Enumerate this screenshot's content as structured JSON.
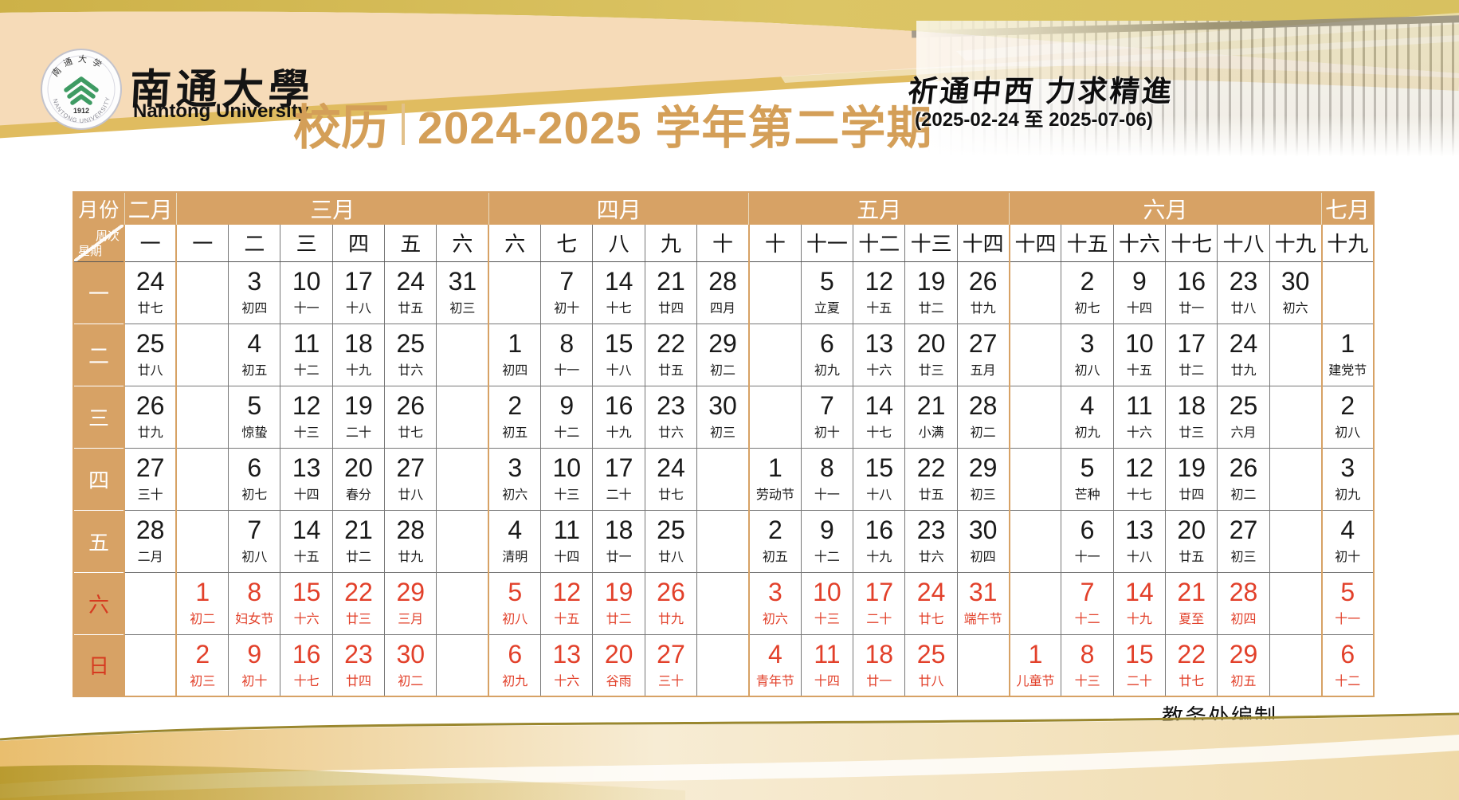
{
  "header": {
    "university_name_zh": "南通大學",
    "university_name_en": "Nantong University",
    "seal_year": "1912",
    "seal_text_zh": "南通大学",
    "seal_text_en": "NANTONG UNIVERSITY",
    "title_prefix": "校历",
    "title_main": "2024-2025 学年第二学期",
    "motto": "祈通中西  力求精進",
    "date_range": "(2025-02-24 至 2025-07-06)"
  },
  "footer": {
    "credit": "教务处编制"
  },
  "colors": {
    "tan_header": "#D7A265",
    "weekend_red": "#E2402A",
    "title_gold": "#D49F58",
    "seal_green": "#3E9B63",
    "top_band_gold": "#CDB148",
    "peach_band": "#F6DBB8",
    "ribbon_gold": "#E0BC60",
    "bottom_band_gold": "#E9BE6E",
    "bottom_olive": "#9A872E"
  },
  "calendar": {
    "corner": {
      "month_label": "月份",
      "week_label": "周次",
      "weekday_label": "星期"
    },
    "months": [
      {
        "label": "二月",
        "span": 1
      },
      {
        "label": "三月",
        "span": 6
      },
      {
        "label": "四月",
        "span": 5
      },
      {
        "label": "五月",
        "span": 5
      },
      {
        "label": "六月",
        "span": 6
      },
      {
        "label": "七月",
        "span": 1
      }
    ],
    "weeks": [
      "一",
      "一",
      "二",
      "三",
      "四",
      "五",
      "六",
      "六",
      "七",
      "八",
      "九",
      "十",
      "十",
      "十一",
      "十二",
      "十三",
      "十四",
      "十四",
      "十五",
      "十六",
      "十七",
      "十八",
      "十九",
      "十九"
    ],
    "rows": [
      {
        "day": "一",
        "red": false,
        "cells": [
          {
            "d": "24",
            "l": "廿七"
          },
          null,
          {
            "d": "3",
            "l": "初四"
          },
          {
            "d": "10",
            "l": "十一"
          },
          {
            "d": "17",
            "l": "十八"
          },
          {
            "d": "24",
            "l": "廿五"
          },
          {
            "d": "31",
            "l": "初三"
          },
          null,
          {
            "d": "7",
            "l": "初十"
          },
          {
            "d": "14",
            "l": "十七"
          },
          {
            "d": "21",
            "l": "廿四"
          },
          {
            "d": "28",
            "l": "四月"
          },
          null,
          {
            "d": "5",
            "l": "立夏"
          },
          {
            "d": "12",
            "l": "十五"
          },
          {
            "d": "19",
            "l": "廿二"
          },
          {
            "d": "26",
            "l": "廿九"
          },
          null,
          {
            "d": "2",
            "l": "初七"
          },
          {
            "d": "9",
            "l": "十四"
          },
          {
            "d": "16",
            "l": "廿一"
          },
          {
            "d": "23",
            "l": "廿八"
          },
          {
            "d": "30",
            "l": "初六"
          },
          null
        ]
      },
      {
        "day": "二",
        "red": false,
        "cells": [
          {
            "d": "25",
            "l": "廿八"
          },
          null,
          {
            "d": "4",
            "l": "初五"
          },
          {
            "d": "11",
            "l": "十二"
          },
          {
            "d": "18",
            "l": "十九"
          },
          {
            "d": "25",
            "l": "廿六"
          },
          null,
          {
            "d": "1",
            "l": "初四"
          },
          {
            "d": "8",
            "l": "十一"
          },
          {
            "d": "15",
            "l": "十八"
          },
          {
            "d": "22",
            "l": "廿五"
          },
          {
            "d": "29",
            "l": "初二"
          },
          null,
          {
            "d": "6",
            "l": "初九"
          },
          {
            "d": "13",
            "l": "十六"
          },
          {
            "d": "20",
            "l": "廿三"
          },
          {
            "d": "27",
            "l": "五月"
          },
          null,
          {
            "d": "3",
            "l": "初八"
          },
          {
            "d": "10",
            "l": "十五"
          },
          {
            "d": "17",
            "l": "廿二"
          },
          {
            "d": "24",
            "l": "廿九"
          },
          null,
          {
            "d": "1",
            "l": "建党节"
          }
        ]
      },
      {
        "day": "三",
        "red": false,
        "cells": [
          {
            "d": "26",
            "l": "廿九"
          },
          null,
          {
            "d": "5",
            "l": "惊蛰"
          },
          {
            "d": "12",
            "l": "十三"
          },
          {
            "d": "19",
            "l": "二十"
          },
          {
            "d": "26",
            "l": "廿七"
          },
          null,
          {
            "d": "2",
            "l": "初五"
          },
          {
            "d": "9",
            "l": "十二"
          },
          {
            "d": "16",
            "l": "十九"
          },
          {
            "d": "23",
            "l": "廿六"
          },
          {
            "d": "30",
            "l": "初三"
          },
          null,
          {
            "d": "7",
            "l": "初十"
          },
          {
            "d": "14",
            "l": "十七"
          },
          {
            "d": "21",
            "l": "小满"
          },
          {
            "d": "28",
            "l": "初二"
          },
          null,
          {
            "d": "4",
            "l": "初九"
          },
          {
            "d": "11",
            "l": "十六"
          },
          {
            "d": "18",
            "l": "廿三"
          },
          {
            "d": "25",
            "l": "六月"
          },
          null,
          {
            "d": "2",
            "l": "初八"
          }
        ]
      },
      {
        "day": "四",
        "red": false,
        "cells": [
          {
            "d": "27",
            "l": "三十"
          },
          null,
          {
            "d": "6",
            "l": "初七"
          },
          {
            "d": "13",
            "l": "十四"
          },
          {
            "d": "20",
            "l": "春分"
          },
          {
            "d": "27",
            "l": "廿八"
          },
          null,
          {
            "d": "3",
            "l": "初六"
          },
          {
            "d": "10",
            "l": "十三"
          },
          {
            "d": "17",
            "l": "二十"
          },
          {
            "d": "24",
            "l": "廿七"
          },
          null,
          {
            "d": "1",
            "l": "劳动节"
          },
          {
            "d": "8",
            "l": "十一"
          },
          {
            "d": "15",
            "l": "十八"
          },
          {
            "d": "22",
            "l": "廿五"
          },
          {
            "d": "29",
            "l": "初三"
          },
          null,
          {
            "d": "5",
            "l": "芒种"
          },
          {
            "d": "12",
            "l": "十七"
          },
          {
            "d": "19",
            "l": "廿四"
          },
          {
            "d": "26",
            "l": "初二"
          },
          null,
          {
            "d": "3",
            "l": "初九"
          }
        ]
      },
      {
        "day": "五",
        "red": false,
        "cells": [
          {
            "d": "28",
            "l": "二月"
          },
          null,
          {
            "d": "7",
            "l": "初八"
          },
          {
            "d": "14",
            "l": "十五"
          },
          {
            "d": "21",
            "l": "廿二"
          },
          {
            "d": "28",
            "l": "廿九"
          },
          null,
          {
            "d": "4",
            "l": "清明"
          },
          {
            "d": "11",
            "l": "十四"
          },
          {
            "d": "18",
            "l": "廿一"
          },
          {
            "d": "25",
            "l": "廿八"
          },
          null,
          {
            "d": "2",
            "l": "初五"
          },
          {
            "d": "9",
            "l": "十二"
          },
          {
            "d": "16",
            "l": "十九"
          },
          {
            "d": "23",
            "l": "廿六"
          },
          {
            "d": "30",
            "l": "初四"
          },
          null,
          {
            "d": "6",
            "l": "十一"
          },
          {
            "d": "13",
            "l": "十八"
          },
          {
            "d": "20",
            "l": "廿五"
          },
          {
            "d": "27",
            "l": "初三"
          },
          null,
          {
            "d": "4",
            "l": "初十"
          }
        ]
      },
      {
        "day": "六",
        "red": true,
        "cells": [
          null,
          {
            "d": "1",
            "l": "初二"
          },
          {
            "d": "8",
            "l": "妇女节"
          },
          {
            "d": "15",
            "l": "十六"
          },
          {
            "d": "22",
            "l": "廿三"
          },
          {
            "d": "29",
            "l": "三月"
          },
          null,
          {
            "d": "5",
            "l": "初八"
          },
          {
            "d": "12",
            "l": "十五"
          },
          {
            "d": "19",
            "l": "廿二"
          },
          {
            "d": "26",
            "l": "廿九"
          },
          null,
          {
            "d": "3",
            "l": "初六"
          },
          {
            "d": "10",
            "l": "十三"
          },
          {
            "d": "17",
            "l": "二十"
          },
          {
            "d": "24",
            "l": "廿七"
          },
          {
            "d": "31",
            "l": "端午节"
          },
          null,
          {
            "d": "7",
            "l": "十二"
          },
          {
            "d": "14",
            "l": "十九"
          },
          {
            "d": "21",
            "l": "夏至"
          },
          {
            "d": "28",
            "l": "初四"
          },
          null,
          {
            "d": "5",
            "l": "十一"
          }
        ]
      },
      {
        "day": "日",
        "red": true,
        "cells": [
          null,
          {
            "d": "2",
            "l": "初三"
          },
          {
            "d": "9",
            "l": "初十"
          },
          {
            "d": "16",
            "l": "十七"
          },
          {
            "d": "23",
            "l": "廿四"
          },
          {
            "d": "30",
            "l": "初二"
          },
          null,
          {
            "d": "6",
            "l": "初九"
          },
          {
            "d": "13",
            "l": "十六"
          },
          {
            "d": "20",
            "l": "谷雨"
          },
          {
            "d": "27",
            "l": "三十"
          },
          null,
          {
            "d": "4",
            "l": "青年节"
          },
          {
            "d": "11",
            "l": "十四"
          },
          {
            "d": "18",
            "l": "廿一"
          },
          {
            "d": "25",
            "l": "廿八"
          },
          null,
          {
            "d": "1",
            "l": "儿童节"
          },
          {
            "d": "8",
            "l": "十三"
          },
          {
            "d": "15",
            "l": "二十"
          },
          {
            "d": "22",
            "l": "廿七"
          },
          {
            "d": "29",
            "l": "初五"
          },
          null,
          {
            "d": "6",
            "l": "十二"
          }
        ]
      }
    ]
  }
}
